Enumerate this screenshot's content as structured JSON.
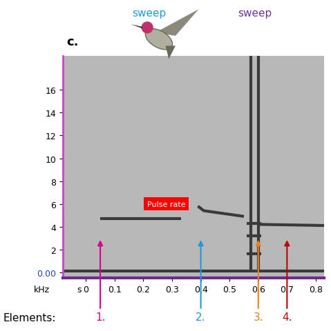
{
  "chart_data": {
    "type": "spectrogram",
    "panel_label": "c.",
    "header_texts": [
      {
        "text": "sweep",
        "color": "#1e9bd7"
      },
      {
        "text": "sweep",
        "color": "#7030a0"
      }
    ],
    "xlabel": "s",
    "ylabel": "kHz",
    "xlim": [
      -0.08,
      0.83
    ],
    "xticks": [
      0,
      0.1,
      0.2,
      0.3,
      0.4,
      0.5,
      0.6,
      0.7,
      0.8
    ],
    "ylim": [
      -0.5,
      19
    ],
    "yticks": [
      {
        "value": 0,
        "label": "0.00"
      },
      2,
      4,
      6,
      8,
      10,
      12,
      14,
      16
    ],
    "traces": [
      {
        "x": [
          -0.08,
          0.83
        ],
        "y": [
          0.1,
          0.1
        ]
      },
      {
        "x": [
          0.05,
          0.33
        ],
        "y": [
          4.7,
          4.7
        ]
      },
      {
        "x": [
          0.39,
          0.41,
          0.55
        ],
        "y": [
          5.8,
          5.4,
          4.9
        ]
      },
      {
        "x": [
          0.575,
          0.575
        ],
        "y": [
          0,
          19
        ]
      },
      {
        "x": [
          0.6,
          0.6
        ],
        "y": [
          0,
          19
        ]
      },
      {
        "x": [
          0.56,
          0.61
        ],
        "y": [
          4.3,
          4.3
        ]
      },
      {
        "x": [
          0.56,
          0.61
        ],
        "y": [
          3.2,
          3.2
        ]
      },
      {
        "x": [
          0.56,
          0.61
        ],
        "y": [
          1.6,
          1.6
        ]
      },
      {
        "x": [
          0.6,
          0.83
        ],
        "y": [
          4.2,
          4.1
        ]
      }
    ],
    "color": "#3a3a3a",
    "annotations": [
      {
        "text": "Pulse rate",
        "x": 0.28,
        "y": 6.0,
        "color": "#ff0000"
      }
    ],
    "elements_title": "Elements:",
    "elements": [
      {
        "text": "1.",
        "x": 0.05,
        "color": "#d6008f"
      },
      {
        "text": "2.",
        "x": 0.4,
        "color": "#1e9bd7"
      },
      {
        "text": "3.",
        "x": 0.6,
        "color": "#f07f1a"
      },
      {
        "text": "4.",
        "x": 0.7,
        "color": "#c00000"
      }
    ]
  }
}
